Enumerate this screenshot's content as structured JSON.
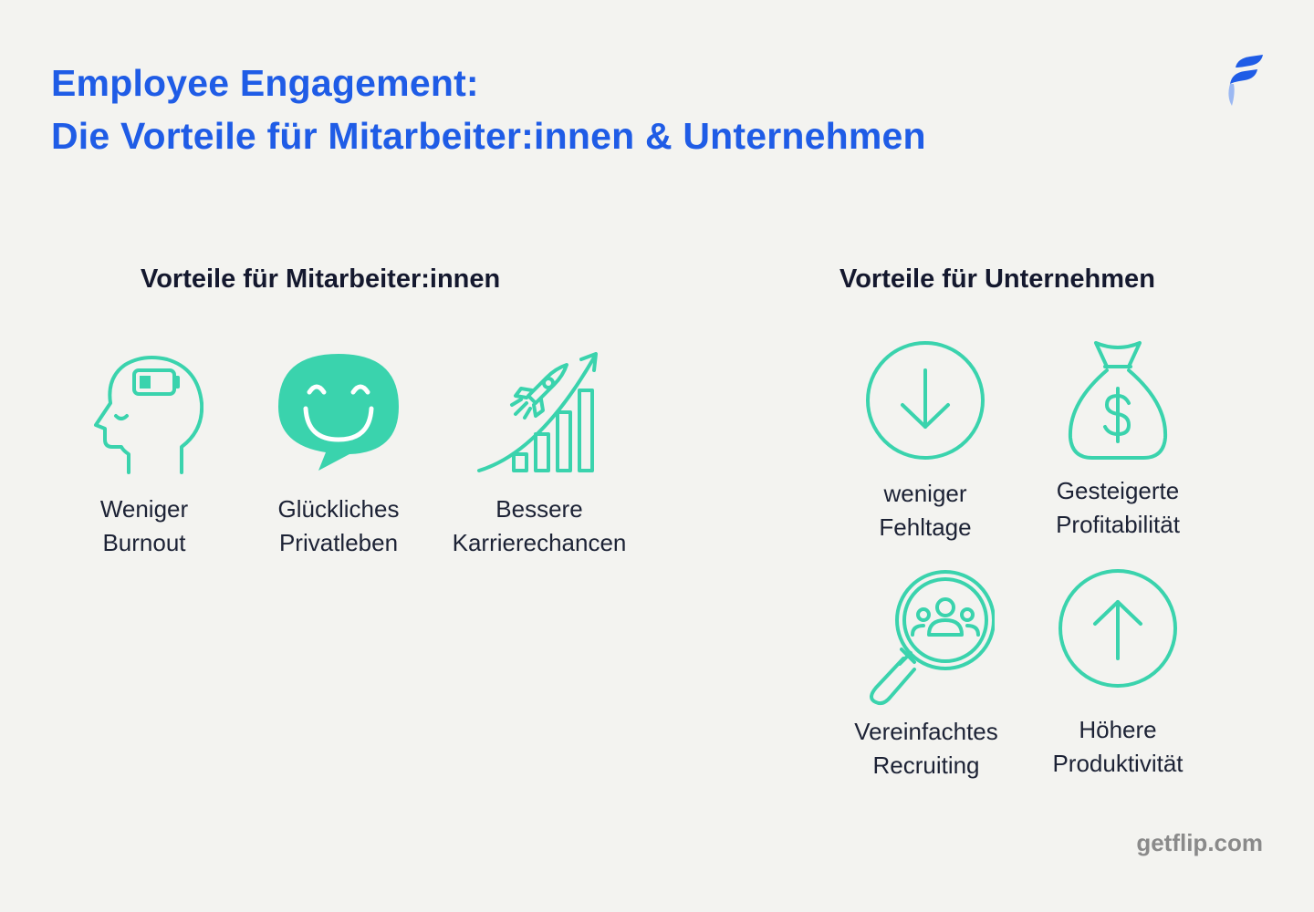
{
  "title": {
    "line1": "Employee Engagement:",
    "line2": "Die Vorteile für Mitarbeiter:innen & Unternehmen"
  },
  "colors": {
    "accent": "#1f5ce6",
    "icon": "#3ad3ad",
    "text": "#1c2235",
    "background": "#f3f3f0"
  },
  "employees": {
    "heading": "Vorteile für Mitarbeiter:innen",
    "items": [
      {
        "icon": "head-battery-icon",
        "line1": "Weniger",
        "line2": "Burnout"
      },
      {
        "icon": "smiley-speech-bubble-icon",
        "line1": "Glückliches",
        "line2": "Privatleben"
      },
      {
        "icon": "rocket-growth-chart-icon",
        "line1": "Bessere",
        "line2": "Karrierechancen"
      }
    ]
  },
  "companies": {
    "heading": "Vorteile für Unternehmen",
    "items": [
      {
        "icon": "arrow-down-circle-icon",
        "line1": "weniger",
        "line2": "Fehltage"
      },
      {
        "icon": "money-bag-icon",
        "line1": "Gesteigerte",
        "line2": "Profitabilität"
      },
      {
        "icon": "magnifier-people-icon",
        "line1": "Vereinfachtes",
        "line2": "Recruiting"
      },
      {
        "icon": "arrow-up-circle-icon",
        "line1": "Höhere",
        "line2": "Produktivität"
      }
    ]
  },
  "footer": {
    "url": "getflip.com"
  }
}
